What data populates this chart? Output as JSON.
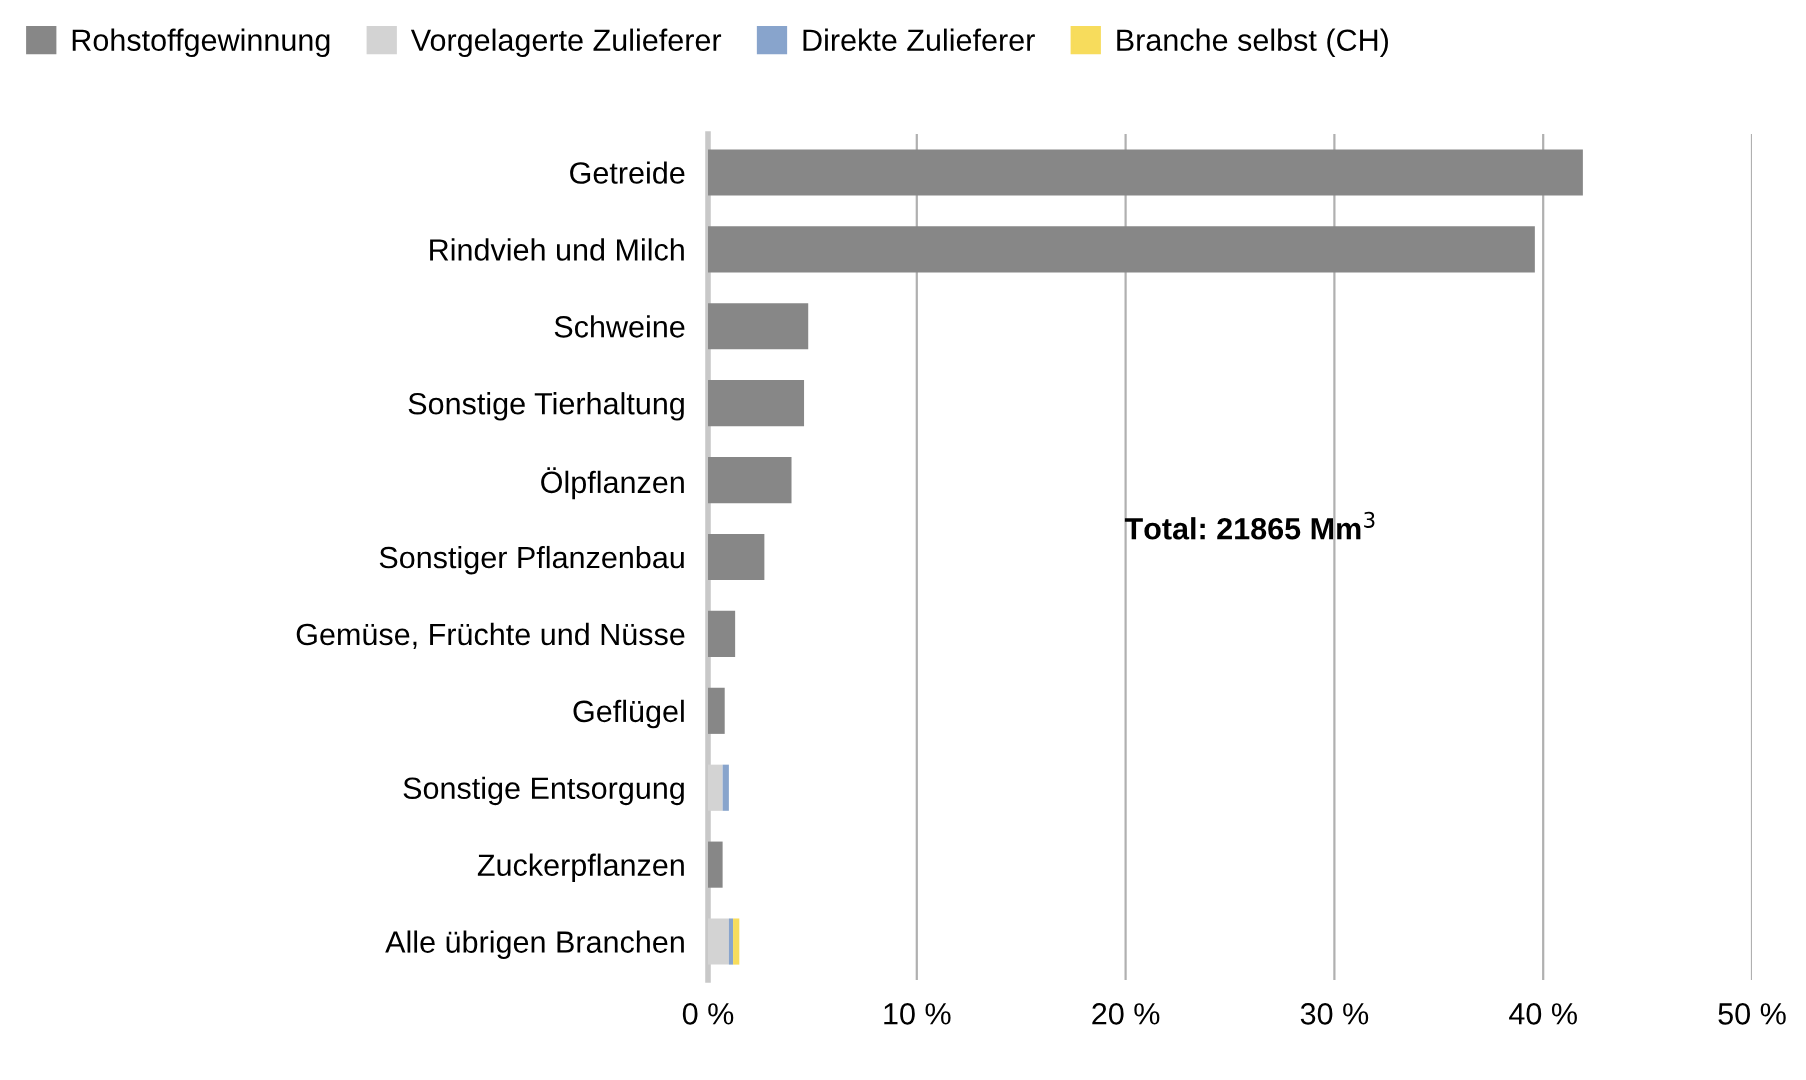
{
  "chart_data": {
    "type": "bar",
    "orientation": "horizontal",
    "stacked": true,
    "categories": [
      "Getreide",
      "Rindvieh und Milch",
      "Schweine",
      "Sonstige Tierhaltung",
      "Ölpflanzen",
      "Sonstiger Pflanzenbau",
      "Gemüse, Früchte und Nüsse",
      "Geflügel",
      "Sonstige Entsorgung",
      "Zuckerpflanzen",
      "Alle übrigen Branchen"
    ],
    "series": [
      {
        "name": "Rohstoffgewinnung",
        "color": "#878787",
        "values": [
          41.9,
          39.6,
          4.8,
          4.6,
          4.0,
          2.7,
          1.3,
          0.8,
          0,
          0.7,
          0
        ]
      },
      {
        "name": "Vorgelagerte Zulieferer",
        "color": "#d3d3d3",
        "values": [
          0,
          0,
          0,
          0,
          0,
          0,
          0,
          0,
          0.7,
          0,
          1.0
        ]
      },
      {
        "name": "Direkte Zulieferer",
        "color": "#88a4cc",
        "values": [
          0,
          0,
          0,
          0,
          0,
          0,
          0,
          0,
          0.3,
          0,
          0.2
        ]
      },
      {
        "name": "Branche selbst (CH)",
        "color": "#f7dc5c",
        "values": [
          0,
          0,
          0,
          0,
          0,
          0,
          0,
          0,
          0,
          0,
          0.3
        ]
      }
    ],
    "xlim": [
      0,
      50
    ],
    "xticks": [
      {
        "value": 0,
        "label": "0 %"
      },
      {
        "value": 10,
        "label": "10 %"
      },
      {
        "value": 20,
        "label": "20 %"
      },
      {
        "value": 30,
        "label": "30 %"
      },
      {
        "value": 40,
        "label": "40 %"
      },
      {
        "value": 50,
        "label": "50 %"
      }
    ],
    "grid": "x",
    "legend": "top left",
    "annotations": [
      "Total: 21865 Mm$^{3}$"
    ]
  }
}
